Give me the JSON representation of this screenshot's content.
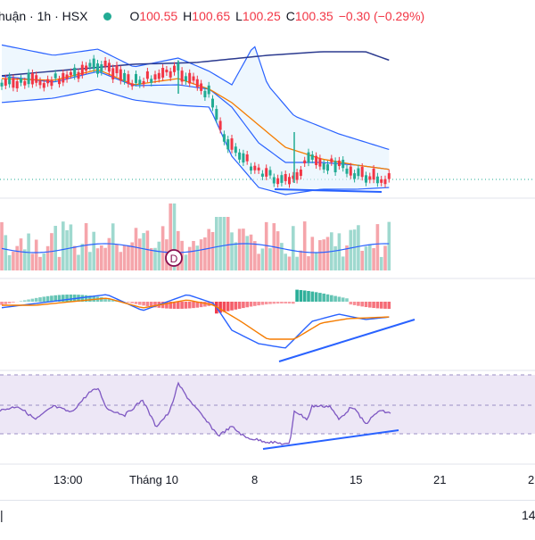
{
  "header": {
    "symbol_fragment": "huận",
    "interval": "1h",
    "exchange": "HSX",
    "separator": "·",
    "open_key": "O",
    "open": "100.55",
    "high_key": "H",
    "high": "100.65",
    "low_key": "L",
    "low": "100.25",
    "close_key": "C",
    "close": "100.35",
    "change": "−0.30 (−0.29%)",
    "live_color": "#22ab94"
  },
  "xaxis": {
    "labels": [
      "13:00",
      "Tháng 10",
      "8",
      "15",
      "21",
      "2"
    ]
  },
  "dividend_marker": "D",
  "bottom": {
    "left_text": "|",
    "right_text": "14"
  },
  "colors": {
    "up": "#22ab94",
    "down": "#f23645",
    "bb_fill": "#e3f2fd",
    "bb_line": "#2962ff",
    "sma": "#2b3a8f",
    "ema": "#f57c00",
    "rsi_line": "#7e57c2",
    "rsi_band": "#ede7f6",
    "trend": "#2962ff"
  }
}
